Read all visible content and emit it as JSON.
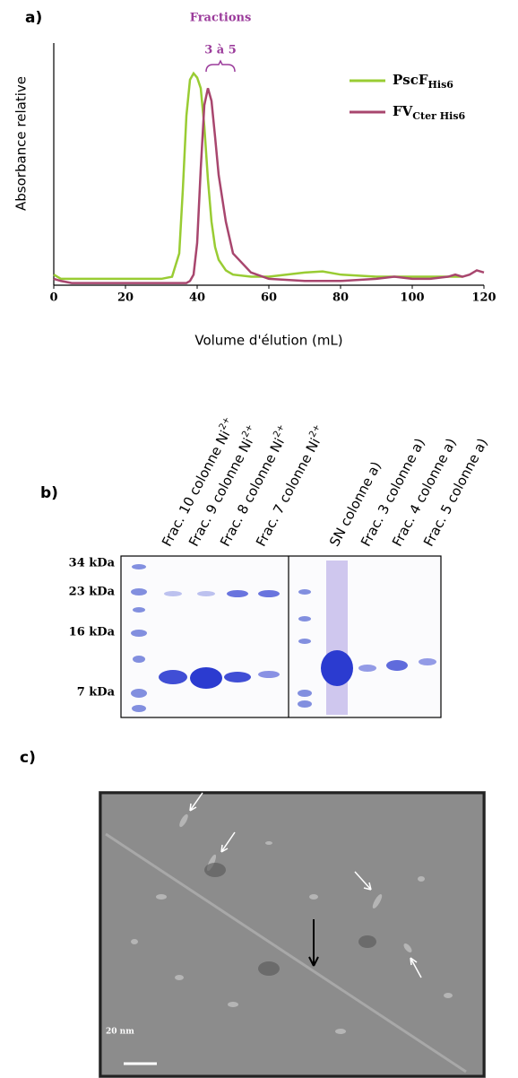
{
  "panel_labels": [
    "a)",
    "b)",
    "c)"
  ],
  "chart_data": {
    "type": "line",
    "ylabel": "Absorbance relative",
    "xlabel": "Volume d'élution (mL)",
    "annotations": [
      "Fractions",
      "3 à 5"
    ],
    "x": [
      0,
      2,
      5,
      10,
      20,
      30,
      33,
      35,
      36,
      37,
      38,
      39,
      40,
      41,
      42,
      43,
      44,
      45,
      46,
      48,
      50,
      55,
      60,
      70,
      75,
      80,
      90,
      95,
      100,
      105,
      110,
      112,
      114,
      116,
      118,
      120
    ],
    "series": [
      {
        "name": "PscF",
        "subscript": "His6",
        "color": "#99cc33",
        "values": [
          0.05,
          0.03,
          0.03,
          0.03,
          0.03,
          0.03,
          0.04,
          0.15,
          0.45,
          0.8,
          0.97,
          1.0,
          0.98,
          0.93,
          0.75,
          0.5,
          0.3,
          0.18,
          0.12,
          0.07,
          0.05,
          0.04,
          0.04,
          0.06,
          0.065,
          0.05,
          0.04,
          0.04,
          0.04,
          0.04,
          0.04,
          0.04,
          0.04,
          null,
          null,
          null
        ]
      },
      {
        "name": "FV",
        "subscript": "Cter His6",
        "color": "#a8466e",
        "values": [
          0.03,
          0.02,
          0.01,
          0.01,
          0.01,
          0.01,
          0.01,
          0.01,
          0.01,
          0.01,
          0.02,
          0.05,
          0.2,
          0.55,
          0.85,
          0.93,
          0.87,
          0.7,
          0.52,
          0.3,
          0.15,
          0.06,
          0.03,
          0.02,
          0.02,
          0.02,
          0.03,
          0.04,
          0.03,
          0.03,
          0.04,
          0.05,
          0.04,
          0.05,
          0.07,
          0.06
        ]
      }
    ],
    "xlim": [
      0,
      120
    ],
    "ylim": [
      0,
      1.05
    ],
    "xticks": [
      0,
      20,
      40,
      60,
      80,
      100,
      120
    ]
  },
  "gel": {
    "lanes": [
      {
        "text": "Frac. 10 colonne Ni",
        "sup": "2+"
      },
      {
        "text": "Frac. 9 colonne Ni",
        "sup": "2+"
      },
      {
        "text": "Frac. 8 colonne Ni",
        "sup": "2+"
      },
      {
        "text": "Frac. 7 colonne Ni",
        "sup": "2+"
      },
      {
        "text": "SN colonne a)"
      },
      {
        "text": "Frac. 3 colonne a)"
      },
      {
        "text": "Frac. 4 colonne a)"
      },
      {
        "text": "Frac. 5 colonne a)"
      }
    ],
    "markers": [
      "34 kDa",
      "23 kDa",
      "16 kDa",
      "7 kDa"
    ]
  },
  "em": {
    "scale_label": "20 nm"
  }
}
